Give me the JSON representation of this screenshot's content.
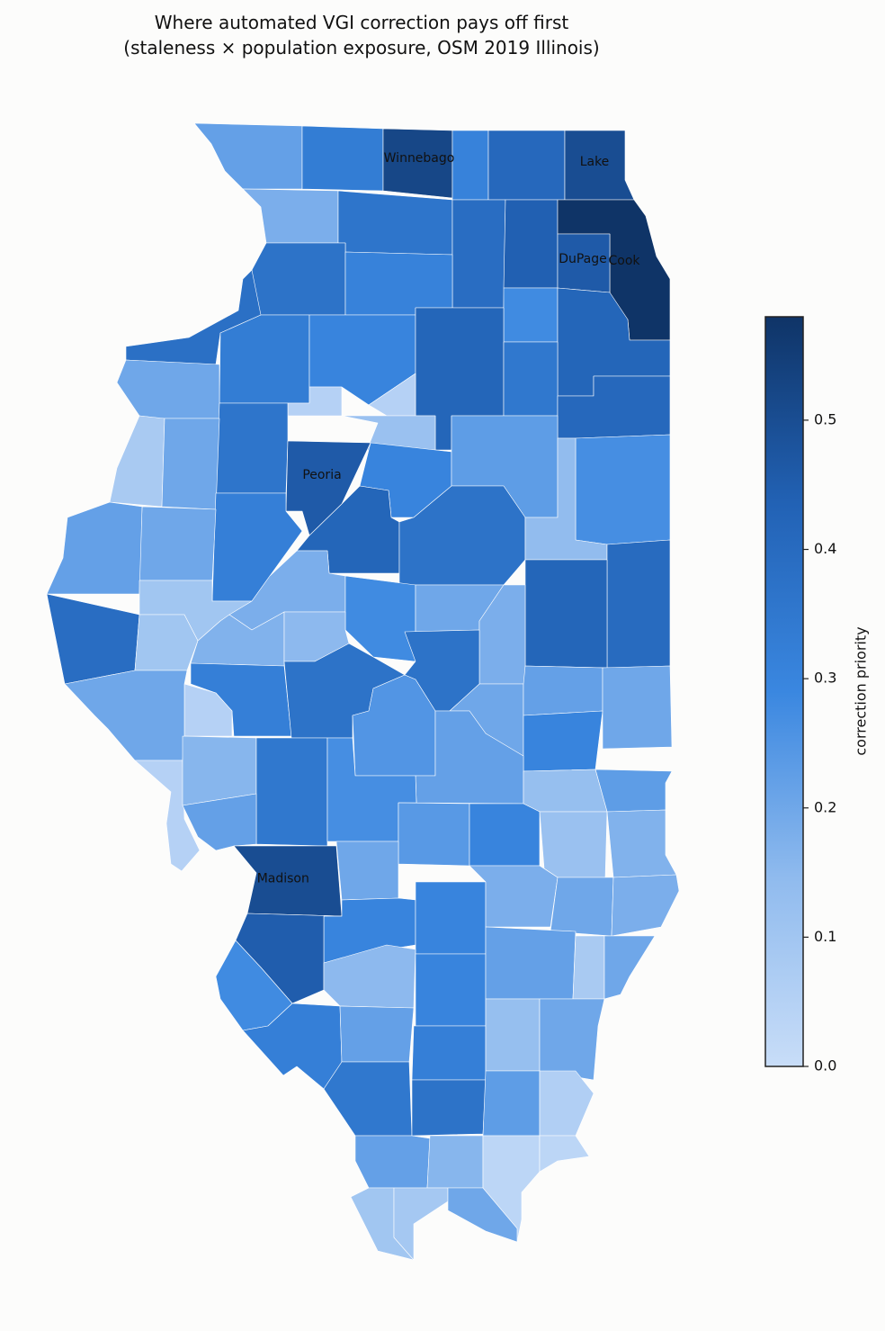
{
  "chart_data": {
    "type": "choropleth",
    "title": [
      "Where automated VGI correction pays off first",
      "(staleness × population exposure, OSM 2019 Illinois)"
    ],
    "colorbar_label": "correction priority",
    "clim": [
      0,
      0.58
    ],
    "colorscale": [
      "#c8ddf8",
      "#90bbee",
      "#3a87e0",
      "#2262b5",
      "#0f3467"
    ],
    "ticks": [
      {
        "value": 0,
        "label": "0.0"
      },
      0.1,
      0.2,
      0.3,
      0.4,
      0.5
    ],
    "regions": [
      {
        "value": 0.22
      },
      {
        "value": 0.33
      },
      {
        "value": 0.52,
        "label": "Winnebago"
      },
      {
        "value": 0.31
      },
      {
        "value": 0.41
      },
      {
        "value": 0.5,
        "label": "Lake"
      },
      {
        "value": 0.18
      },
      {
        "value": 0.36
      },
      {
        "value": 0.39
      },
      {
        "value": 0.44
      },
      {
        "value": 0.58,
        "label": "Cook"
      },
      {
        "value": 0.46,
        "label": "DuPage"
      },
      {
        "value": 0.37
      },
      {
        "value": 0.31
      },
      {
        "value": 0.28
      },
      {
        "value": 0.42
      },
      {
        "value": 0.38
      },
      {
        "value": 0.33
      },
      {
        "value": 0.3
      },
      {
        "value": 0.42
      },
      {
        "value": 0.35
      },
      {
        "value": 0.41
      },
      {
        "value": 0.2
      },
      {
        "value": 0.05
      },
      {
        "value": 0.05
      },
      {
        "value": 0.12
      },
      {
        "value": 0.36
      },
      {
        "value": 0.08
      },
      {
        "value": 0.2
      },
      {
        "value": 0.46,
        "label": "Peoria"
      },
      {
        "value": 0.3
      },
      {
        "value": 0.23
      },
      {
        "value": 0.27
      },
      {
        "value": 0.32
      },
      {
        "value": 0.42
      },
      {
        "value": 0.37
      },
      {
        "value": 0.14
      },
      {
        "value": 0.2
      },
      {
        "value": 0.22
      },
      {
        "value": 0.4
      },
      {
        "value": 0.42
      },
      {
        "value": 0.1
      },
      {
        "value": 0.18
      },
      {
        "value": 0.28
      },
      {
        "value": 0.2
      },
      {
        "value": 0.18
      },
      {
        "value": 0.39
      },
      {
        "value": 0.1
      },
      {
        "value": 0.17
      },
      {
        "value": 0.15
      },
      {
        "value": 0.32
      },
      {
        "value": 0.05
      },
      {
        "value": 0.37
      },
      {
        "value": 0.37
      },
      {
        "value": 0.2
      },
      {
        "value": 0.22
      },
      {
        "value": 0.2
      },
      {
        "value": 0.3
      },
      {
        "value": 0.25
      },
      {
        "value": 0.22
      },
      {
        "value": 0.2
      },
      {
        "value": 0.05
      },
      {
        "value": 0.16
      },
      {
        "value": 0.35
      },
      {
        "value": 0.27
      },
      {
        "value": 0.23
      },
      {
        "value": 0.13
      },
      {
        "value": 0.24
      },
      {
        "value": 0.3
      },
      {
        "value": 0.22
      },
      {
        "value": 0.5,
        "label": "Madison"
      },
      {
        "value": 0.2
      },
      {
        "value": 0.12
      },
      {
        "value": 0.17
      },
      {
        "value": 0.3
      },
      {
        "value": 0.3
      },
      {
        "value": 0.18
      },
      {
        "value": 0.2
      },
      {
        "value": 0.18
      },
      {
        "value": 0.45
      },
      {
        "value": 0.15
      },
      {
        "value": 0.3
      },
      {
        "value": 0.22
      },
      {
        "value": 0.08
      },
      {
        "value": 0.2
      },
      {
        "value": 0.28
      },
      {
        "value": 0.32
      },
      {
        "value": 0.22
      },
      {
        "value": 0.32
      },
      {
        "value": 0.13
      },
      {
        "value": 0.2
      },
      {
        "value": 0.35
      },
      {
        "value": 0.37
      },
      {
        "value": 0.23
      },
      {
        "value": 0.06
      },
      {
        "value": 0.22
      },
      {
        "value": 0.16
      },
      {
        "value": 0.03
      },
      {
        "value": 0.03
      },
      {
        "value": 0.1
      },
      {
        "value": 0.09
      },
      {
        "value": 0.2
      }
    ]
  }
}
